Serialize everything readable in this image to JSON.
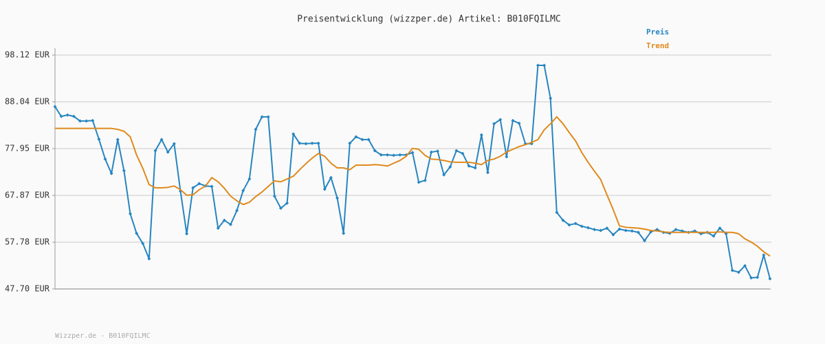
{
  "chart_data": {
    "type": "line",
    "title": "Preisentwicklung (wizzper.de) Artikel: B010FQILMC",
    "footer": "Wizzper.de - B010FQILMC",
    "legend": "top-right",
    "grid": true,
    "ylim": [
      47.7,
      98.12
    ],
    "yticks": [
      {
        "value": 47.7,
        "label": "47.70 EUR"
      },
      {
        "value": 57.78,
        "label": "57.78 EUR"
      },
      {
        "value": 67.87,
        "label": "67.87 EUR"
      },
      {
        "value": 77.95,
        "label": "77.95 EUR"
      },
      {
        "value": 88.04,
        "label": "88.04 EUR"
      },
      {
        "value": 98.12,
        "label": "98.12 EUR"
      }
    ],
    "series": [
      {
        "name": "Preis",
        "color": "#2585c0",
        "markers": true,
        "values": [
          87.0,
          84.9,
          85.2,
          84.9,
          83.9,
          83.9,
          84.0,
          80.0,
          75.7,
          72.6,
          79.9,
          73.2,
          63.9,
          59.7,
          57.5,
          54.2,
          77.5,
          79.9,
          77.2,
          79.0,
          68.8,
          59.6,
          69.5,
          70.4,
          69.9,
          69.8,
          60.8,
          62.5,
          61.6,
          64.6,
          68.9,
          71.4,
          82.1,
          84.8,
          84.8,
          67.7,
          65.1,
          66.2,
          81.1,
          79.1,
          79.0,
          79.1,
          79.1,
          69.2,
          71.7,
          67.3,
          59.7,
          79.1,
          80.5,
          79.9,
          79.9,
          77.5,
          76.6,
          76.6,
          76.5,
          76.6,
          76.6,
          77.1,
          70.7,
          71.1,
          77.2,
          77.4,
          72.3,
          74.0,
          77.5,
          76.9,
          74.2,
          73.8,
          80.9,
          72.8,
          83.3,
          84.2,
          76.2,
          84.0,
          83.4,
          79.0,
          79.0,
          95.9,
          95.9,
          88.8,
          64.2,
          62.5,
          61.5,
          61.8,
          61.2,
          60.9,
          60.5,
          60.3,
          60.8,
          59.4,
          60.6,
          60.3,
          60.2,
          59.9,
          58.1,
          60.0,
          60.5,
          59.9,
          59.7,
          60.5,
          60.2,
          59.9,
          60.2,
          59.6,
          59.9,
          59.1,
          60.8,
          59.6,
          51.7,
          51.3,
          52.7,
          50.1,
          50.2,
          55.0,
          49.9
        ]
      },
      {
        "name": "Trend",
        "color": "#e0891c",
        "markers": false,
        "values": [
          82.3,
          82.3,
          82.3,
          82.3,
          82.3,
          82.3,
          82.3,
          82.3,
          82.3,
          82.3,
          82.1,
          81.7,
          80.5,
          76.6,
          73.7,
          70.2,
          69.5,
          69.5,
          69.6,
          69.9,
          69.1,
          67.9,
          68.0,
          69.1,
          69.9,
          71.7,
          70.8,
          69.4,
          67.7,
          66.7,
          65.9,
          66.4,
          67.6,
          68.6,
          69.8,
          71.0,
          70.8,
          71.4,
          72.0,
          73.4,
          74.7,
          75.9,
          76.9,
          76.3,
          74.8,
          73.8,
          73.8,
          73.4,
          74.4,
          74.4,
          74.4,
          74.5,
          74.4,
          74.2,
          74.8,
          75.4,
          76.3,
          78.0,
          77.8,
          76.5,
          75.7,
          75.6,
          75.4,
          75.1,
          75.0,
          75.0,
          75.0,
          74.8,
          74.5,
          75.4,
          75.7,
          76.3,
          77.2,
          77.8,
          78.4,
          78.8,
          79.3,
          79.9,
          82.0,
          83.3,
          84.8,
          83.3,
          81.4,
          79.6,
          77.1,
          75.0,
          73.1,
          71.3,
          68.0,
          64.8,
          61.3,
          61.0,
          60.9,
          60.8,
          60.6,
          60.3,
          60.2,
          60.0,
          59.9,
          59.9,
          59.9,
          59.9,
          59.9,
          59.9,
          59.9,
          59.9,
          60.0,
          59.9,
          59.9,
          59.6,
          58.5,
          57.8,
          56.9,
          55.7,
          54.8
        ]
      }
    ]
  }
}
